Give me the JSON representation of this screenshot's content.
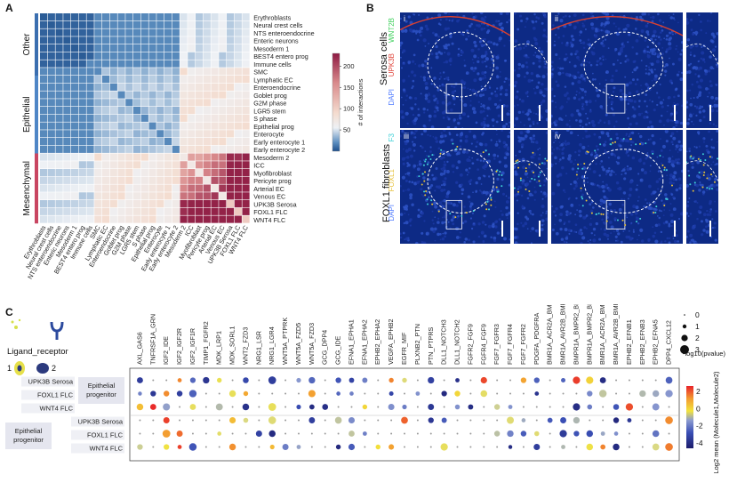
{
  "panels": {
    "a": "A",
    "b": "B",
    "c": "C"
  },
  "heatmap": {
    "cells": [
      "Erythroblasts",
      "Neural crest cells",
      "NTS enteroendocrine",
      "Enteric neurons",
      "Mesoderm 1",
      "BEST4 entero prog",
      "Immune cells",
      "SMC",
      "Lymphatic EC",
      "Enteroendocrine",
      "Goblet prog",
      "G2M phase",
      "LGR5 stem",
      "S phase",
      "Epithelial prog",
      "Enterocyte",
      "Early enterocyte 1",
      "Early enterocyte 2",
      "Mesoderm 2",
      "ICC",
      "Myofibroblast",
      "Pericyte prog",
      "Arterial EC",
      "Venous EC",
      "UPK3B Serosa",
      "FOXL1 FLC",
      "WNT4 FLC"
    ],
    "groups": [
      "Other",
      "Epithelial",
      "Mesenchymal"
    ],
    "colorbar_label": "# of interactions",
    "colorbar_ticks": [
      50,
      100,
      150,
      200
    ],
    "colorbar_min": 0,
    "colorbar_max": 230
  },
  "panel_b": {
    "row_labels": [
      "Serosa cells",
      "FOXL1 fibroblasts"
    ],
    "stains_top": [
      "WNT2B",
      "UPK3B",
      "DAPI"
    ],
    "stains_bottom": [
      "F3",
      "FOXL1",
      "DAPI"
    ],
    "tiles": [
      {
        "label": "i"
      },
      {
        "label": ""
      },
      {
        "label": "ii"
      },
      {
        "label": ""
      },
      {
        "label": "iii"
      },
      {
        "label": ""
      },
      {
        "label": "iv"
      },
      {
        "label": ""
      }
    ]
  },
  "panel_c": {
    "legend_title": "Ligand_receptor",
    "legend_1": "1",
    "legend_2": "2",
    "pairs": [
      "AXL_GAS6",
      "TNFRSF1A_GRN",
      "IGF2_IDE",
      "IGF2_IGF2R",
      "IGF2_IGF1R",
      "TIMP1_FGFR2",
      "MDK_LRP1",
      "MDK_SORL1",
      "WNT2_FZD3",
      "NRG1_LSR",
      "NRG1_LGR4",
      "WNT5A_PTPRK",
      "WNT5A_FZD5",
      "WNT5A_FZD3",
      "GCG_DPP4",
      "GCG_IDE",
      "EFNA1_EPHA1",
      "EFNA1_EPHA2",
      "EPHB2_EPHA2",
      "VEGFA_EPHB2",
      "EGFR_MIF",
      "PLXNB2_PTN",
      "PTN_PTPRS",
      "DLL1_NOTCH3",
      "DLL1_NOTCH2",
      "FGFR2_FGF9",
      "FGFR4_FGF9",
      "FGF7_FGFR3",
      "FGF7_FGFR4",
      "FGF7_FGFR2",
      "PDGFA_PDGFRA",
      "BMR1A_ACR2A_BMP4",
      "BMR1A_AVR2B_BMP4",
      "BMPR1A_BMPR2_BMP4",
      "BMPR1A_BMPR2_BMP5",
      "BMR1A_ACR2A_BMP5",
      "BMR1A_AVR2B_BMP5",
      "EPHB2_EFNB1",
      "EPHB2_EFNB3",
      "EPHB2_EFNA5",
      "DPP4_CXCL12"
    ],
    "row_labels_top": [
      "UPK3B Serosa",
      "FOXL1 FLC",
      "WNT4 FLC"
    ],
    "group_top": "Epithelial progenitor",
    "row_labels_bottom": [
      "UPK3B Serosa",
      "FOXL1 FLC",
      "WNT4 FLC"
    ],
    "group_bottom": "Epithelial progenitor",
    "size_legend": {
      "values": [
        "0",
        "1",
        "2",
        "3"
      ],
      "title": "-log10(pvalue)"
    },
    "color_legend": {
      "ticks": [
        "2",
        "0",
        "-2",
        "-4"
      ],
      "title": "Log2 mean (Molecule1,Molecule2)"
    },
    "colors": {
      "high": "#e8232a",
      "mid": "#f2e33c",
      "low": "#1c1c6b"
    }
  }
}
